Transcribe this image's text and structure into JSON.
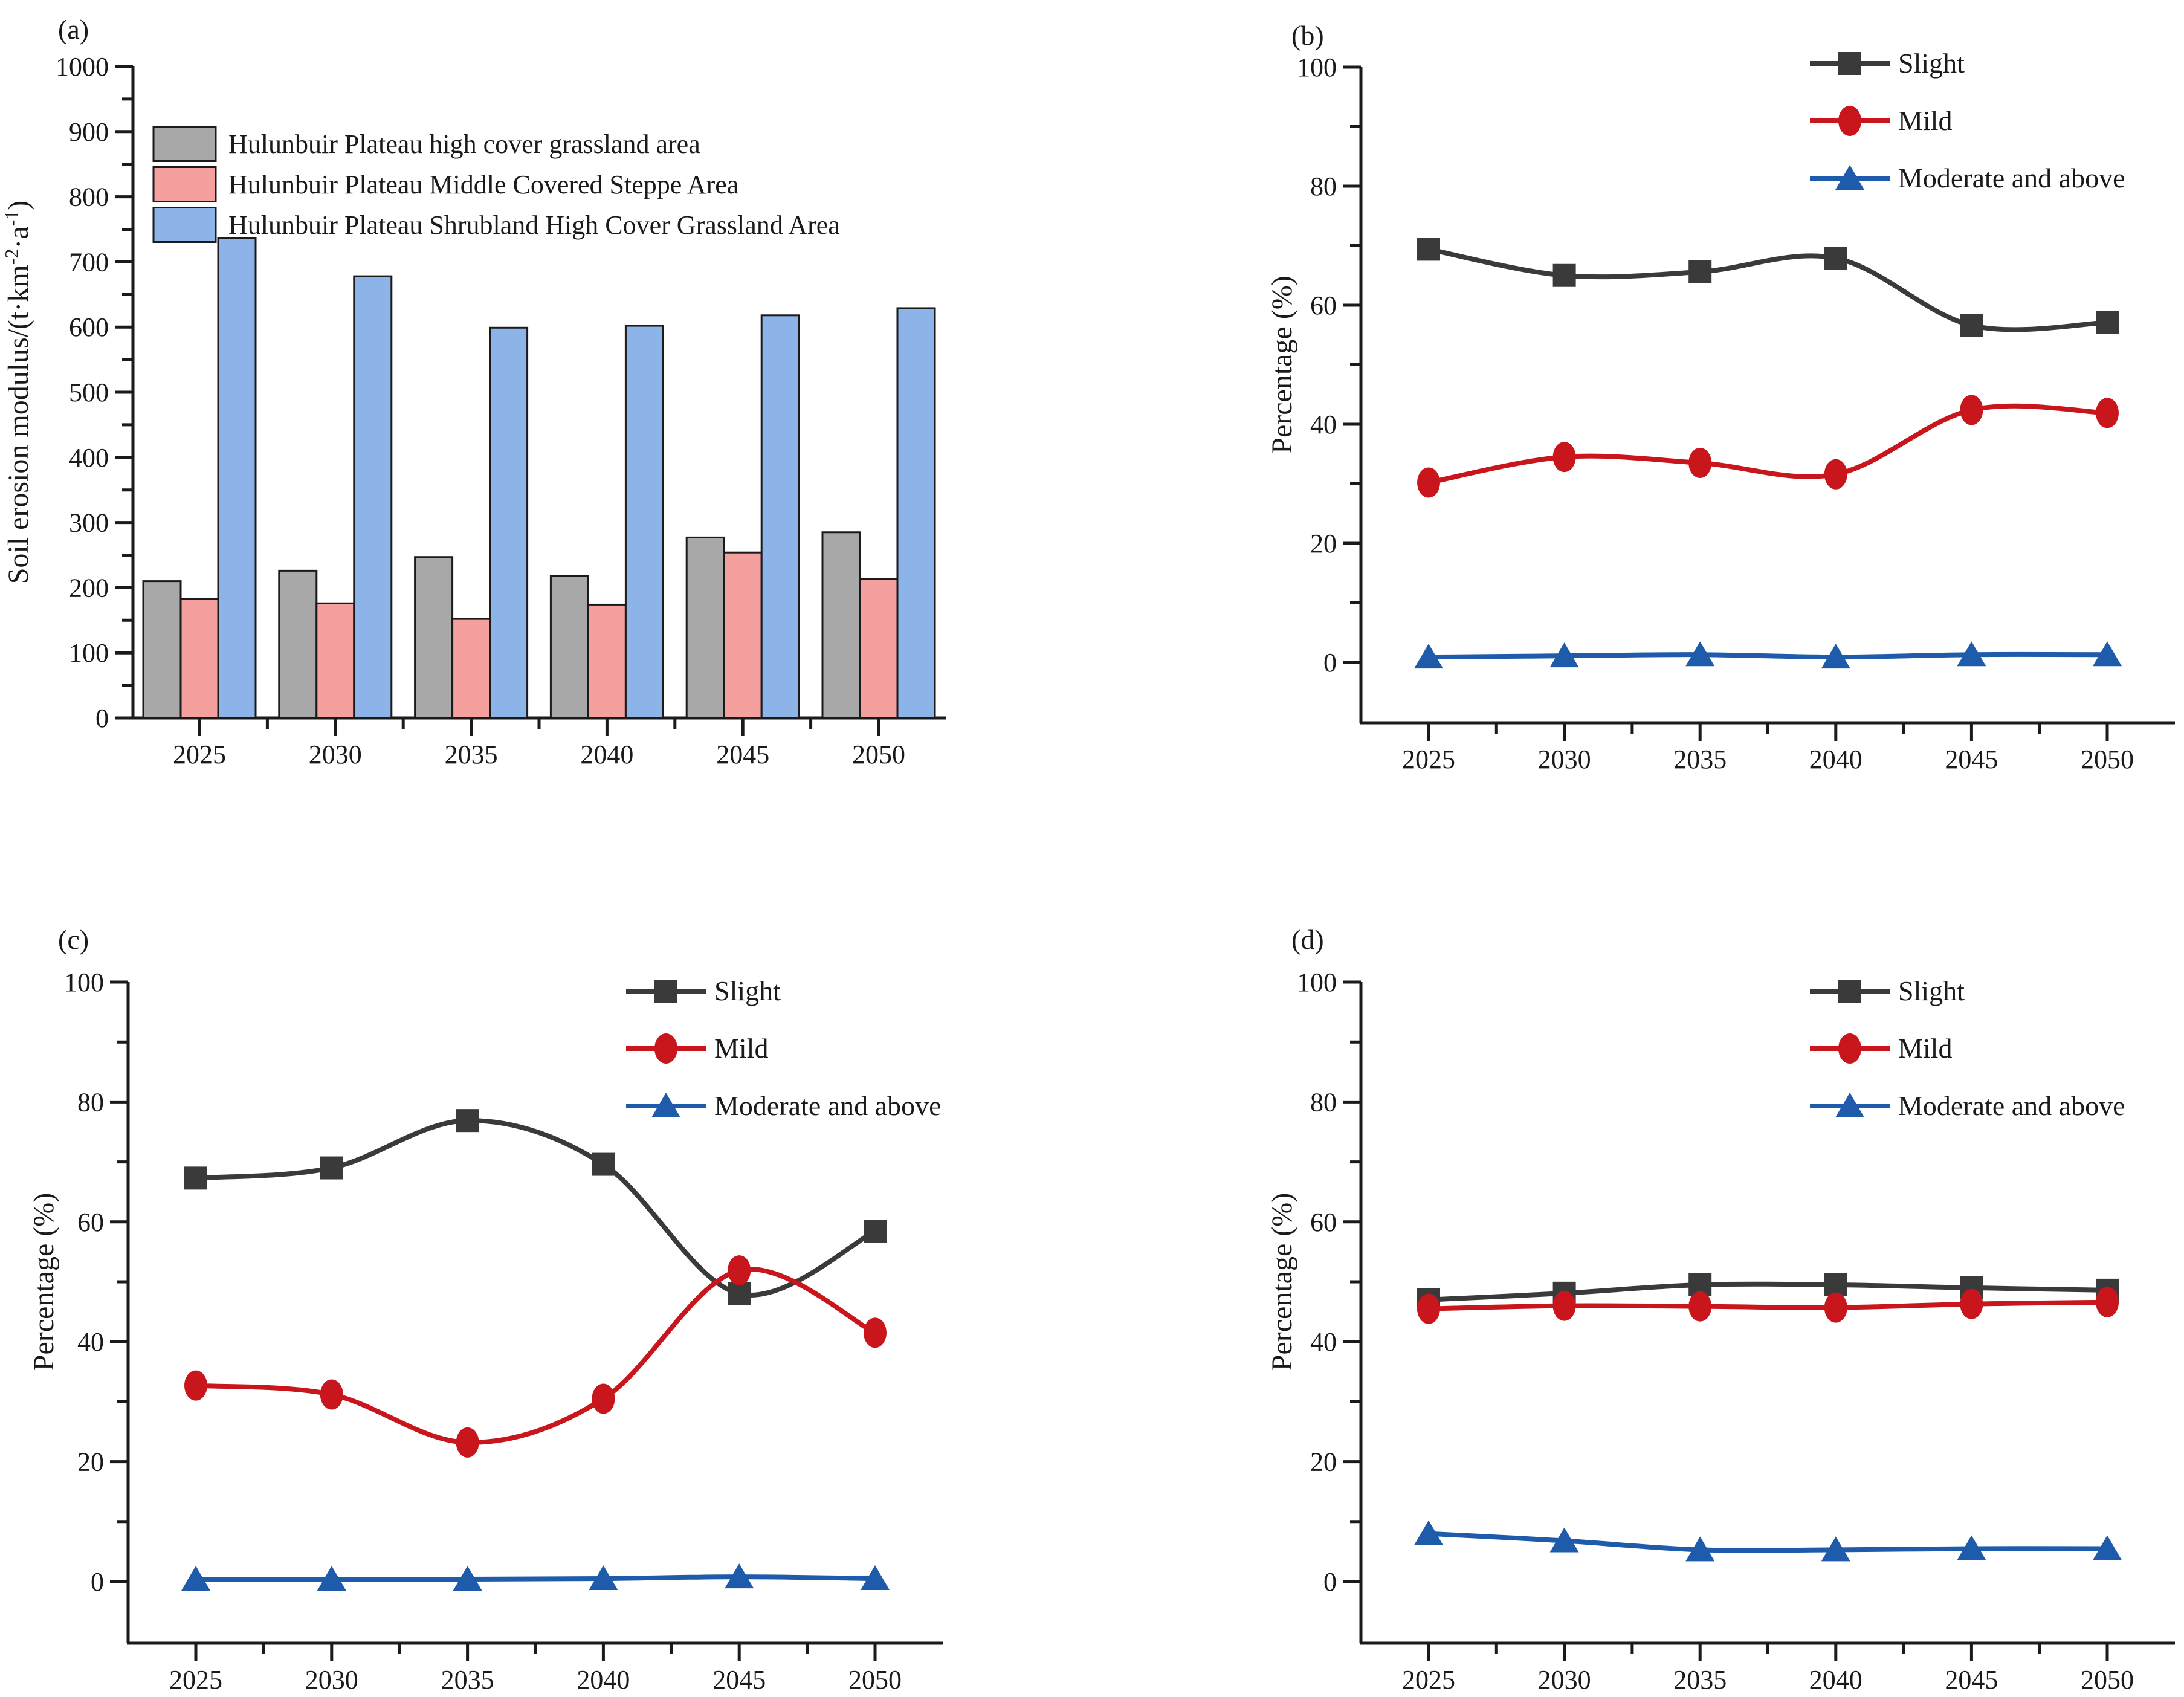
{
  "figure": {
    "background": "#ffffff",
    "text_color": "#1a1a1a"
  },
  "chart_data": [
    {
      "id": "a",
      "panel_label": "(a)",
      "type": "bar",
      "title": "",
      "xlabel": "",
      "ylabel": "Soil erosion modulus/(t·km^{-2}·a^{-1})",
      "categories": [
        "2025",
        "2030",
        "2035",
        "2040",
        "2045",
        "2050"
      ],
      "ylim": [
        0,
        1000
      ],
      "ytick_major": 100,
      "ytick_minor": 50,
      "grid": false,
      "legend_position": "top-left-inside",
      "series": [
        {
          "name": "Hulunbuir Plateau high cover grassland area",
          "color": "#a8a8a8",
          "values": [
            210,
            226,
            247,
            218,
            277,
            285
          ]
        },
        {
          "name": "Hulunbuir Plateau Middle Covered Steppe Area",
          "color": "#f3a09f",
          "values": [
            183,
            176,
            152,
            174,
            254,
            213
          ]
        },
        {
          "name": "Hulunbuir Plateau Shrubland High Cover Grassland Area",
          "color": "#8cb4e9",
          "values": [
            737,
            678,
            599,
            602,
            618,
            629
          ]
        }
      ]
    },
    {
      "id": "b",
      "panel_label": "(b)",
      "type": "line",
      "title": "",
      "xlabel": "",
      "ylabel": "Percentage (%)",
      "categories": [
        "2025",
        "2030",
        "2035",
        "2040",
        "2045",
        "2050"
      ],
      "ylim": [
        0,
        100
      ],
      "ytick_major": 20,
      "ytick_minor": 10,
      "grid": false,
      "legend_position": "top-right-inside",
      "series": [
        {
          "name": "Slight",
          "color": "#3a3a3a",
          "marker": "square",
          "values": [
            69.4,
            65.0,
            65.6,
            67.9,
            56.6,
            57.1
          ]
        },
        {
          "name": "Mild",
          "color": "#c8161c",
          "marker": "circle",
          "values": [
            30.2,
            34.5,
            33.5,
            31.6,
            42.4,
            41.9
          ]
        },
        {
          "name": "Moderate and above",
          "color": "#1e5baa",
          "marker": "triangle",
          "values": [
            0.9,
            1.1,
            1.3,
            0.9,
            1.3,
            1.3
          ]
        }
      ]
    },
    {
      "id": "c",
      "panel_label": "(c)",
      "type": "line",
      "title": "",
      "xlabel": "",
      "ylabel": "Percentage (%)",
      "categories": [
        "2025",
        "2030",
        "2035",
        "2040",
        "2045",
        "2050"
      ],
      "ylim": [
        0,
        100
      ],
      "ytick_major": 20,
      "ytick_minor": 10,
      "grid": false,
      "legend_position": "top-right-inside",
      "series": [
        {
          "name": "Slight",
          "color": "#3a3a3a",
          "marker": "square",
          "values": [
            67.3,
            69.0,
            76.9,
            69.6,
            48.0,
            58.4
          ]
        },
        {
          "name": "Mild",
          "color": "#c8161c",
          "marker": "circle",
          "values": [
            32.7,
            31.2,
            23.2,
            30.5,
            51.9,
            41.5
          ]
        },
        {
          "name": "Moderate and above",
          "color": "#1e5baa",
          "marker": "triangle",
          "values": [
            0.4,
            0.4,
            0.4,
            0.5,
            0.8,
            0.5
          ]
        }
      ]
    },
    {
      "id": "d",
      "panel_label": "(d)",
      "type": "line",
      "title": "",
      "xlabel": "",
      "ylabel": "Percentage (%)",
      "categories": [
        "2025",
        "2030",
        "2035",
        "2040",
        "2045",
        "2050"
      ],
      "ylim": [
        0,
        100
      ],
      "ytick_major": 20,
      "ytick_minor": 10,
      "grid": false,
      "legend_position": "top-right-inside",
      "series": [
        {
          "name": "Slight",
          "color": "#3a3a3a",
          "marker": "square",
          "values": [
            47.0,
            48.1,
            49.5,
            49.5,
            49.0,
            48.6
          ]
        },
        {
          "name": "Mild",
          "color": "#c8161c",
          "marker": "circle",
          "values": [
            45.5,
            46.0,
            45.9,
            45.7,
            46.3,
            46.6
          ]
        },
        {
          "name": "Moderate and above",
          "color": "#1e5baa",
          "marker": "triangle",
          "values": [
            8.0,
            6.8,
            5.3,
            5.3,
            5.5,
            5.5
          ]
        }
      ]
    }
  ]
}
